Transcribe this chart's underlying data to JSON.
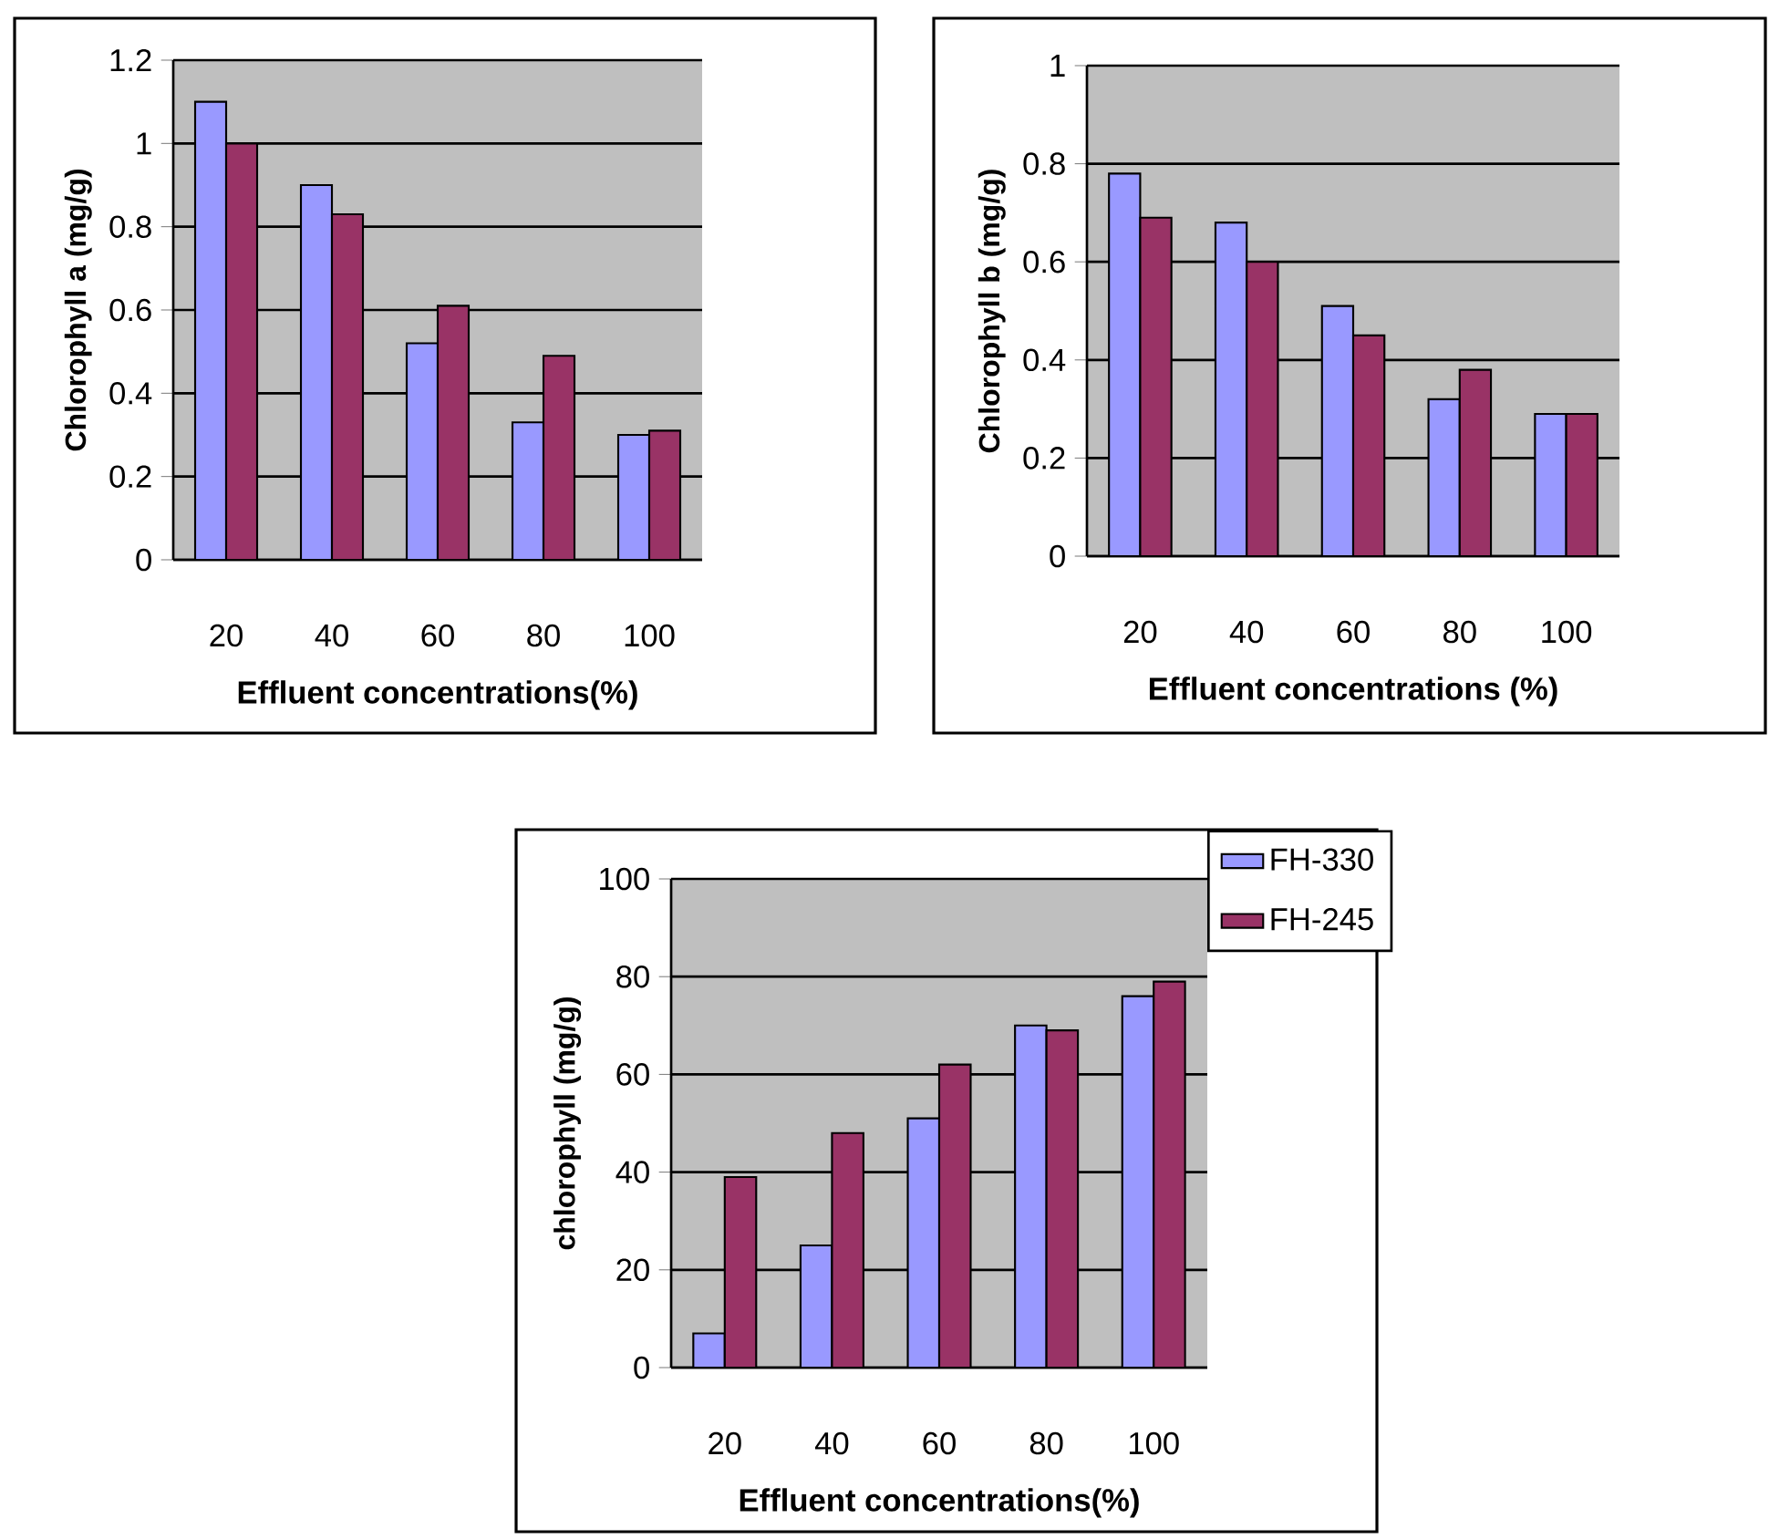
{
  "chart_data": [
    {
      "type": "bar",
      "xlabel": "Effluent concentrations(%)",
      "ylabel": "Chlorophyll a (mg/g)",
      "categories": [
        "20",
        "40",
        "60",
        "80",
        "100"
      ],
      "series": [
        {
          "color": "#9999ff",
          "values": [
            1.1,
            0.9,
            0.52,
            0.33,
            0.3
          ]
        },
        {
          "color": "#993366",
          "values": [
            1.0,
            0.83,
            0.61,
            0.49,
            0.31
          ]
        }
      ],
      "ylim": [
        0,
        1.2
      ],
      "yticks": [
        0,
        0.2,
        0.4,
        0.6,
        0.8,
        1,
        1.2
      ],
      "grid": "y",
      "legend": false
    },
    {
      "type": "bar",
      "xlabel": "Effluent concentrations (%)",
      "ylabel": "Chlorophyll b (mg/g)",
      "categories": [
        "20",
        "40",
        "60",
        "80",
        "100"
      ],
      "series": [
        {
          "color": "#9999ff",
          "values": [
            0.78,
            0.68,
            0.51,
            0.32,
            0.29
          ]
        },
        {
          "color": "#993366",
          "values": [
            0.69,
            0.6,
            0.45,
            0.38,
            0.29
          ]
        }
      ],
      "ylim": [
        0,
        1
      ],
      "yticks": [
        0,
        0.2,
        0.4,
        0.6,
        0.8,
        1
      ],
      "grid": "y",
      "legend": false
    },
    {
      "type": "bar",
      "xlabel": "Effluent concentrations(%)",
      "ylabel": "chlorophyll (mg/g)",
      "categories": [
        "20",
        "40",
        "60",
        "80",
        "100"
      ],
      "series": [
        {
          "name": "FH-330",
          "color": "#9999ff",
          "values": [
            7,
            25,
            51,
            70,
            76
          ]
        },
        {
          "name": "FH-245",
          "color": "#993366",
          "values": [
            39,
            48,
            62,
            69,
            79
          ]
        }
      ],
      "ylim": [
        0,
        100
      ],
      "yticks": [
        0,
        20,
        40,
        60,
        80,
        100
      ],
      "grid": "y",
      "legend": "top right"
    }
  ]
}
